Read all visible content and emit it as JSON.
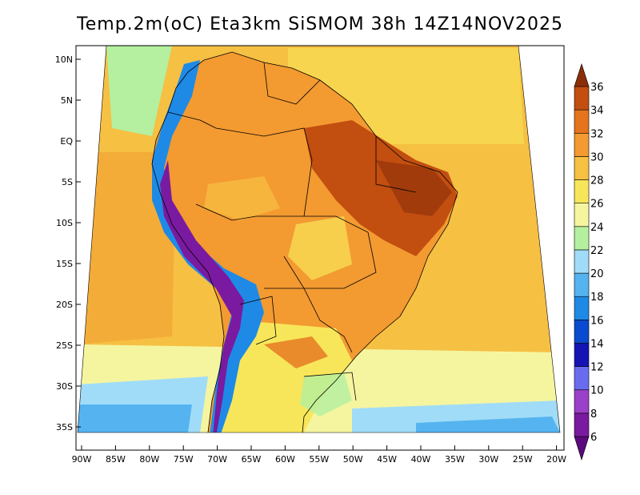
{
  "title": "Temp.2m(oC) Eta3km SiSMOM 38h 14Z14NOV2025",
  "lat_labels": [
    "10N",
    "5N",
    "EQ",
    "5S",
    "10S",
    "15S",
    "20S",
    "25S",
    "30S",
    "35S"
  ],
  "lon_labels": [
    "90W",
    "85W",
    "80W",
    "75W",
    "70W",
    "65W",
    "60W",
    "55W",
    "50W",
    "45W",
    "40W",
    "35W",
    "30W",
    "25W",
    "20W"
  ],
  "colorbar": {
    "labels": [
      "6",
      "8",
      "10",
      "12",
      "14",
      "16",
      "18",
      "20",
      "22",
      "24",
      "26",
      "28",
      "30",
      "32",
      "34",
      "36"
    ],
    "colors": [
      "#5a0a7a",
      "#7a1aa0",
      "#9b40c8",
      "#6a6cf0",
      "#1414b4",
      "#0a4ad0",
      "#1e8ae6",
      "#55b4f0",
      "#a0dcf8",
      "#b4f0a0",
      "#f5f5a0",
      "#f8e65a",
      "#f6c043",
      "#f39a31",
      "#e5741e",
      "#c24e10",
      "#8a2e0a"
    ]
  },
  "regions": {
    "ocean": "#f6c043",
    "continent": "#f39a31",
    "hot_northeast": "#c24e10",
    "andes_cold": "#1e8ae6",
    "andes_peaks": "#7a1aa0",
    "south_cool": "#f8e65a",
    "far_south": "#a0dcf8"
  }
}
